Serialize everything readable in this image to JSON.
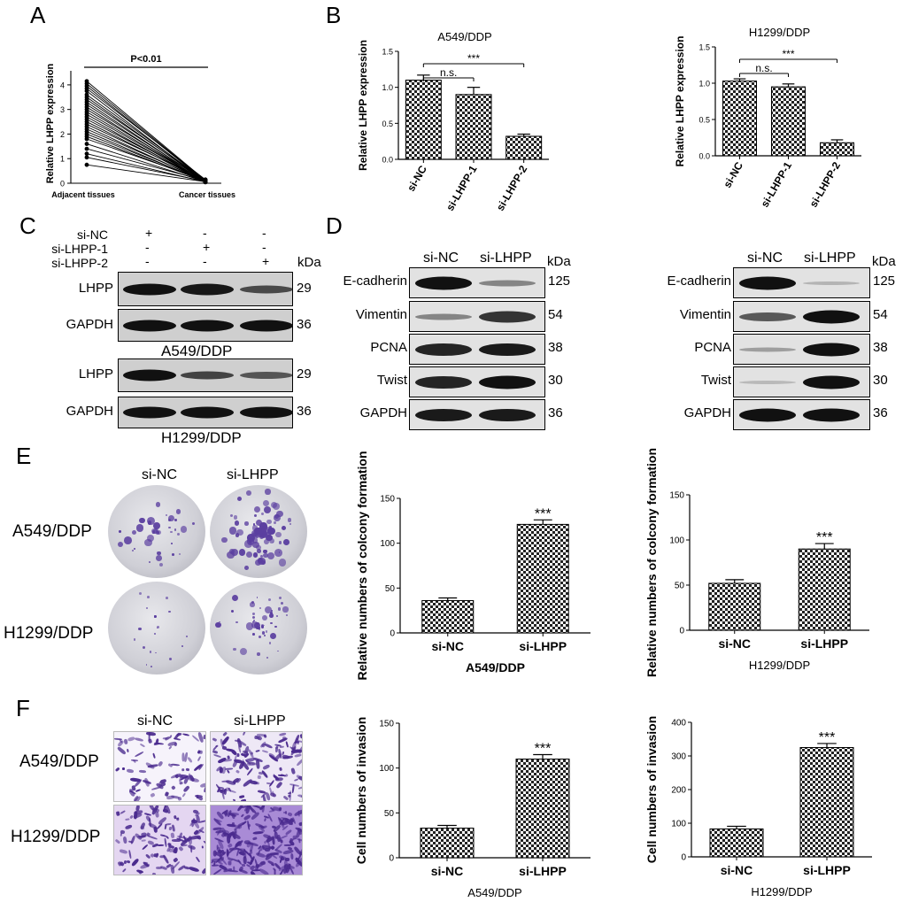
{
  "panels": {
    "a": "A",
    "b": "B",
    "c": "C",
    "d": "D",
    "e": "E",
    "f": "F"
  },
  "panelA": {
    "sig": "P<0.01",
    "ylabel": "Relative LHPP expression",
    "yticks": [
      "0",
      "1",
      "2",
      "3",
      "4"
    ],
    "xcats": [
      "Adjacent tissues",
      "Cancer tissues"
    ]
  },
  "panelC": {
    "rowlabels": [
      "si-NC",
      "si-LHPP-1",
      "si-LHPP-2"
    ],
    "signs": [
      [
        "+",
        "-",
        "-"
      ],
      [
        "-",
        "+",
        "-"
      ],
      [
        "-",
        "-",
        "+"
      ]
    ],
    "kda": "kDa",
    "blots": [
      {
        "protein": "LHPP",
        "kda": "29"
      },
      {
        "protein": "GAPDH",
        "kda": "36"
      },
      {
        "protein": "LHPP",
        "kda": "29"
      },
      {
        "protein": "GAPDH",
        "kda": "36"
      }
    ],
    "line1": "A549/DDP",
    "line2": "H1299/DDP"
  },
  "panelD": {
    "lanes": [
      "si-NC",
      "si-LHPP"
    ],
    "kda": "kDa",
    "proteins": [
      {
        "name": "E-cadherin",
        "kda": "125"
      },
      {
        "name": "Vimentin",
        "kda": "54"
      },
      {
        "name": "PCNA",
        "kda": "38"
      },
      {
        "name": "Twist",
        "kda": "30"
      },
      {
        "name": "GAPDH",
        "kda": "36"
      }
    ]
  },
  "panelE": {
    "cols": [
      "si-NC",
      "si-LHPP"
    ],
    "rows": [
      "A549/DDP",
      "H1299/DDP"
    ]
  },
  "panelF": {
    "cols": [
      "si-NC",
      "si-LHPP"
    ],
    "rows": [
      "A549/DDP",
      "H1299/DDP"
    ]
  },
  "chart_data": [
    {
      "type": "line",
      "panel": "A",
      "ylabel": "Relative LHPP expression",
      "categories": [
        "Adjacent tissues",
        "Cancer tissues"
      ],
      "ylim": [
        0,
        4.5
      ],
      "series": [
        {
          "values": [
            4.15,
            0.12
          ]
        },
        {
          "values": [
            4.05,
            0.1
          ]
        },
        {
          "values": [
            3.95,
            0.08
          ]
        },
        {
          "values": [
            3.85,
            0.15
          ]
        },
        {
          "values": [
            3.75,
            0.05
          ]
        },
        {
          "values": [
            3.6,
            0.11
          ]
        },
        {
          "values": [
            3.5,
            0.07
          ]
        },
        {
          "values": [
            3.4,
            0.13
          ]
        },
        {
          "values": [
            3.3,
            0.06
          ]
        },
        {
          "values": [
            3.2,
            0.1
          ]
        },
        {
          "values": [
            3.1,
            0.04
          ]
        },
        {
          "values": [
            3.0,
            0.12
          ]
        },
        {
          "values": [
            2.9,
            0.08
          ]
        },
        {
          "values": [
            2.8,
            0.09
          ]
        },
        {
          "values": [
            2.7,
            0.05
          ]
        },
        {
          "values": [
            2.6,
            0.11
          ]
        },
        {
          "values": [
            2.5,
            0.07
          ]
        },
        {
          "values": [
            2.4,
            0.14
          ]
        },
        {
          "values": [
            2.3,
            0.06
          ]
        },
        {
          "values": [
            2.2,
            0.1
          ]
        },
        {
          "values": [
            2.1,
            0.05
          ]
        },
        {
          "values": [
            2.0,
            0.09
          ]
        },
        {
          "values": [
            1.9,
            0.07
          ]
        },
        {
          "values": [
            1.8,
            0.12
          ]
        },
        {
          "values": [
            1.6,
            0.06
          ]
        },
        {
          "values": [
            1.4,
            0.1
          ]
        },
        {
          "values": [
            1.2,
            0.05
          ]
        },
        {
          "values": [
            1.05,
            0.08
          ]
        },
        {
          "values": [
            0.75,
            0.06
          ]
        }
      ]
    },
    {
      "type": "bar",
      "panel": "B-left",
      "title": "A549/DDP",
      "ylabel": "Relative LHPP expression",
      "categories": [
        "si-NC",
        "si-LHPP-1",
        "si-LHPP-2"
      ],
      "values": [
        1.1,
        0.9,
        0.32
      ],
      "errors": [
        0.07,
        0.1,
        0.03
      ],
      "ylim": [
        0,
        1.5
      ],
      "yticks": [
        "0.0",
        "0.5",
        "1.0",
        "1.5"
      ],
      "brackets": [
        {
          "from": 0,
          "to": 1,
          "label": "n.s."
        },
        {
          "from": 0,
          "to": 2,
          "label": "***"
        }
      ]
    },
    {
      "type": "bar",
      "panel": "B-right",
      "title": "H1299/DDP",
      "ylabel": "Relative LHPP expression",
      "categories": [
        "si-NC",
        "si-LHPP-1",
        "si-LHPP-2"
      ],
      "values": [
        1.03,
        0.95,
        0.18
      ],
      "errors": [
        0.03,
        0.04,
        0.04
      ],
      "ylim": [
        0,
        1.5
      ],
      "yticks": [
        "0.0",
        "0.5",
        "1.0",
        "1.5"
      ],
      "brackets": [
        {
          "from": 0,
          "to": 1,
          "label": "n.s."
        },
        {
          "from": 0,
          "to": 2,
          "label": "***"
        }
      ]
    },
    {
      "type": "bar",
      "panel": "E-left",
      "xlabel": "A549/DDP",
      "ylabel": "Relative numbers of colcony formation",
      "categories": [
        "si-NC",
        "si-LHPP"
      ],
      "values": [
        36,
        121
      ],
      "errors": [
        3,
        5
      ],
      "ylim": [
        0,
        150
      ],
      "yticks": [
        "0",
        "50",
        "100",
        "150"
      ],
      "stars": "***"
    },
    {
      "type": "bar",
      "panel": "E-right",
      "xlabel": "H1299/DDP",
      "ylabel": "Relative numbers of colcony formation",
      "categories": [
        "si-NC",
        "si-LHPP"
      ],
      "values": [
        52,
        90
      ],
      "errors": [
        4,
        6
      ],
      "ylim": [
        0,
        150
      ],
      "yticks": [
        "0",
        "50",
        "100",
        "150"
      ],
      "stars": "***"
    },
    {
      "type": "bar",
      "panel": "F-left",
      "xlabel": "A549/DDP",
      "ylabel": "Cell numbers of invasion",
      "categories": [
        "si-NC",
        "si-LHPP"
      ],
      "values": [
        33,
        110
      ],
      "errors": [
        3,
        5
      ],
      "ylim": [
        0,
        150
      ],
      "yticks": [
        "0",
        "50",
        "100",
        "150"
      ],
      "stars": "***"
    },
    {
      "type": "bar",
      "panel": "F-right",
      "xlabel": "H1299/DDP",
      "ylabel": "Cell numbers of invasion",
      "categories": [
        "si-NC",
        "si-LHPP"
      ],
      "values": [
        83,
        325
      ],
      "errors": [
        8,
        12
      ],
      "ylim": [
        0,
        400
      ],
      "yticks": [
        "0",
        "100",
        "200",
        "300",
        "400"
      ],
      "stars": "***"
    }
  ]
}
